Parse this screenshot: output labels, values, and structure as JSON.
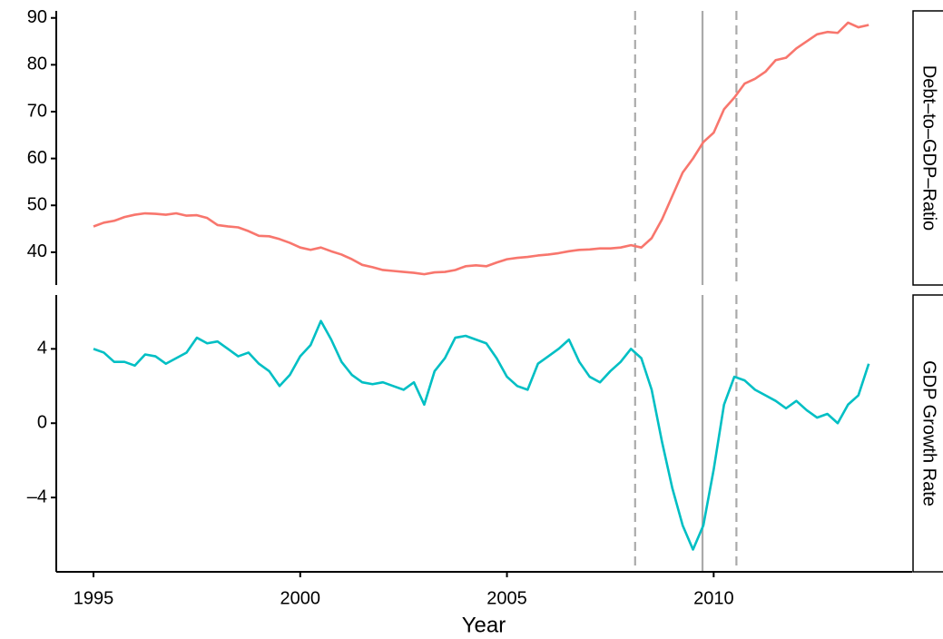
{
  "chart_data": {
    "type": "line",
    "x": [
      1995,
      1995.25,
      1995.5,
      1995.75,
      1996,
      1996.25,
      1996.5,
      1996.75,
      1997,
      1997.25,
      1997.5,
      1997.75,
      1998,
      1998.25,
      1998.5,
      1998.75,
      1999,
      1999.25,
      1999.5,
      1999.75,
      2000,
      2000.25,
      2000.5,
      2000.75,
      2001,
      2001.25,
      2001.5,
      2001.75,
      2002,
      2002.25,
      2002.5,
      2002.75,
      2003,
      2003.25,
      2003.5,
      2003.75,
      2004,
      2004.25,
      2004.5,
      2004.75,
      2005,
      2005.25,
      2005.5,
      2005.75,
      2006,
      2006.25,
      2006.5,
      2006.75,
      2007,
      2007.25,
      2007.5,
      2007.75,
      2008,
      2008.25,
      2008.5,
      2008.75,
      2009,
      2009.25,
      2009.5,
      2009.75,
      2010,
      2010.25,
      2010.5,
      2010.75,
      2011,
      2011.25,
      2011.5,
      2011.75,
      2012,
      2012.25,
      2012.5,
      2012.75,
      2013,
      2013.25,
      2013.5,
      2013.75
    ],
    "xlim": [
      1994.1,
      2014.8
    ],
    "xticks": [
      1995,
      2000,
      2005,
      2010
    ],
    "xlabel": "Year",
    "vlines": [
      {
        "x": 2008.1,
        "style": "dashed"
      },
      {
        "x": 2009.73,
        "style": "solid"
      },
      {
        "x": 2010.55,
        "style": "dashed"
      }
    ],
    "vline_color": "#aaaaaa",
    "series": [
      {
        "name": "Debt–to–GDP–Ratio",
        "color": "#F8766D",
        "ylim": [
          33,
          91.5
        ],
        "yticks": [
          40,
          50,
          60,
          70,
          80,
          90
        ],
        "values": [
          45.5,
          46.3,
          46.7,
          47.5,
          48.0,
          48.3,
          48.2,
          48.0,
          48.3,
          47.8,
          47.9,
          47.3,
          45.8,
          45.5,
          45.3,
          44.5,
          43.5,
          43.4,
          42.8,
          42.0,
          41.0,
          40.5,
          41.0,
          40.2,
          39.5,
          38.5,
          37.3,
          36.8,
          36.2,
          36.0,
          35.8,
          35.6,
          35.3,
          35.7,
          35.8,
          36.2,
          37.0,
          37.2,
          37.0,
          37.8,
          38.5,
          38.8,
          39.0,
          39.3,
          39.5,
          39.8,
          40.2,
          40.5,
          40.6,
          40.8,
          40.8,
          41.0,
          41.5,
          41.0,
          43.0,
          47.0,
          52.0,
          57.0,
          60.0,
          63.5,
          65.5,
          70.5,
          73.0,
          76.0,
          77.0,
          78.5,
          81.0,
          81.5,
          83.5,
          85.0,
          86.5,
          87.0,
          86.8,
          89.0,
          88.0,
          88.5
        ]
      },
      {
        "name": "GDP Growth Rate",
        "color": "#00BFC4",
        "ylim": [
          -8,
          6.9
        ],
        "yticks": [
          {
            "value": -4,
            "label": "–4"
          },
          0,
          4
        ],
        "values": [
          4.0,
          3.8,
          3.3,
          3.3,
          3.1,
          3.7,
          3.6,
          3.2,
          3.5,
          3.8,
          4.6,
          4.3,
          4.4,
          4.0,
          3.6,
          3.8,
          3.2,
          2.8,
          2.0,
          2.6,
          3.6,
          4.2,
          5.5,
          4.5,
          3.3,
          2.6,
          2.2,
          2.1,
          2.2,
          2.0,
          1.8,
          2.2,
          1.0,
          2.8,
          3.5,
          4.6,
          4.7,
          4.5,
          4.3,
          3.5,
          2.5,
          2.0,
          1.8,
          3.2,
          3.6,
          4.0,
          4.5,
          3.3,
          2.5,
          2.2,
          2.8,
          3.3,
          4.0,
          3.5,
          1.8,
          -1.0,
          -3.5,
          -5.5,
          -6.8,
          -5.5,
          -2.5,
          1.0,
          2.5,
          2.3,
          1.8,
          1.5,
          1.2,
          0.8,
          1.2,
          0.7,
          0.3,
          0.5,
          0.0,
          1.0,
          1.5,
          3.2
        ]
      }
    ]
  }
}
